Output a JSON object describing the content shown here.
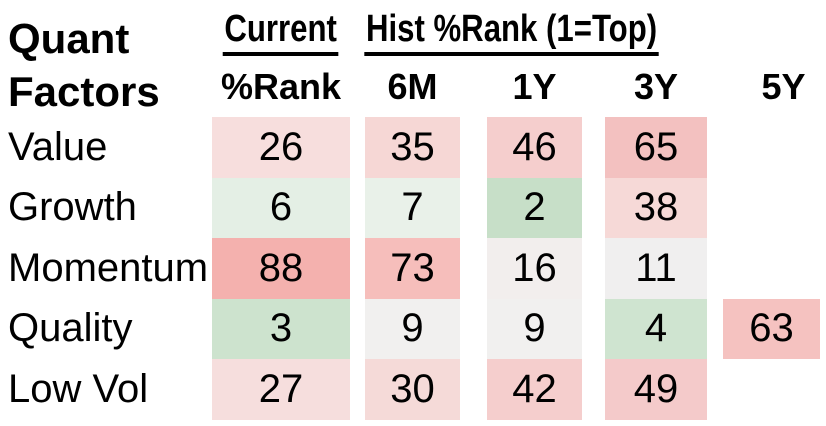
{
  "header": {
    "line1": "Quant",
    "line2": "Factors"
  },
  "chart_data": {
    "type": "heatmap",
    "title": "Quant Factors",
    "scale_note": "1=Top",
    "column_groups": [
      {
        "label": "Current",
        "columns": [
          "%Rank"
        ]
      },
      {
        "label": "Hist %Rank (1=Top)",
        "columns": [
          "6M",
          "1Y",
          "3Y",
          "5Y"
        ]
      }
    ],
    "columns": [
      "%Rank",
      "6M",
      "1Y",
      "3Y",
      "5Y"
    ],
    "rows": [
      "Value",
      "Growth",
      "Momentum",
      "Quality",
      "Low Vol"
    ],
    "values": [
      [
        26,
        35,
        46,
        65,
        null
      ],
      [
        6,
        7,
        2,
        38,
        null
      ],
      [
        88,
        73,
        16,
        11,
        null
      ],
      [
        3,
        9,
        9,
        4,
        63
      ],
      [
        27,
        30,
        42,
        49,
        null
      ]
    ]
  },
  "heatmap_colors": [
    [
      "#f7dedd",
      "#f6d7d5",
      "#f5cecd",
      "#f3c1c0",
      null
    ],
    [
      "#e4efe5",
      "#e9f1e9",
      "#c7dfc8",
      "#f6d9d7",
      null
    ],
    [
      "#f4b1ae",
      "#f6bebb",
      "#f2eeed",
      "#f0efef",
      null
    ],
    [
      "#cde3ce",
      "#f1f0ef",
      "#f1f0ef",
      "#cfe4d0",
      "#f5c2c0"
    ],
    [
      "#f6dedd",
      "#f5dad8",
      "#f5cecd",
      "#f4caca",
      null
    ]
  ],
  "colors": {
    "background": "#ffffff",
    "text": "#000000",
    "heat_low_green": "#c7dfc8",
    "heat_high_red": "#f4b1ae"
  }
}
